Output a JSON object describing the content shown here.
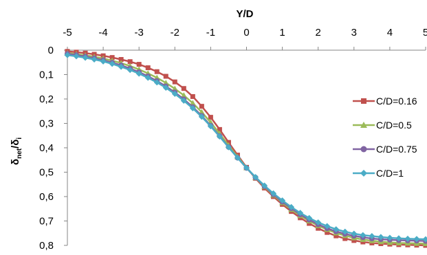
{
  "chart_data": {
    "type": "line",
    "title": "",
    "xlabel": "Y/D",
    "ylabel": {
      "main": "δ",
      "sub1": "net",
      "slash": "/δ",
      "sub2": "i"
    },
    "x_axis_position": "top",
    "y_axis_reversed": true,
    "xlim": [
      -5,
      5
    ],
    "ylim": [
      0,
      0.8
    ],
    "x_ticks": [
      -5,
      -4,
      -3,
      -2,
      -1,
      0,
      1,
      2,
      3,
      4,
      5
    ],
    "x_tick_labels": [
      "-5",
      "-4",
      "-3",
      "-2",
      "-1",
      "0",
      "1",
      "2",
      "3",
      "4",
      "5"
    ],
    "y_ticks": [
      0,
      0.1,
      0.2,
      0.3,
      0.4,
      0.5,
      0.6,
      0.7,
      0.8
    ],
    "y_tick_labels": [
      "0",
      "0,1",
      "0,2",
      "0,3",
      "0,4",
      "0,5",
      "0,6",
      "0,7",
      "0,8"
    ],
    "grid": false,
    "legend_position": "right",
    "x": [
      -5,
      -4.75,
      -4.5,
      -4.25,
      -4,
      -3.75,
      -3.5,
      -3.25,
      -3,
      -2.75,
      -2.5,
      -2.25,
      -2,
      -1.75,
      -1.5,
      -1.25,
      -1,
      -0.75,
      -0.5,
      -0.25,
      0,
      0.25,
      0.5,
      0.75,
      1,
      1.25,
      1.5,
      1.75,
      2,
      2.25,
      2.5,
      2.75,
      3,
      3.25,
      3.5,
      3.75,
      4,
      4.25,
      4.5,
      4.75,
      5
    ],
    "series": [
      {
        "name": "C/D=0.16",
        "color": "#C0504D",
        "marker": "square",
        "values": [
          0.005,
          0.008,
          0.012,
          0.017,
          0.023,
          0.03,
          0.038,
          0.047,
          0.058,
          0.072,
          0.088,
          0.107,
          0.13,
          0.157,
          0.19,
          0.23,
          0.275,
          0.325,
          0.378,
          0.43,
          0.48,
          0.525,
          0.565,
          0.6,
          0.632,
          0.661,
          0.687,
          0.71,
          0.73,
          0.747,
          0.761,
          0.772,
          0.78,
          0.786,
          0.79,
          0.793,
          0.795,
          0.797,
          0.798,
          0.799,
          0.8
        ]
      },
      {
        "name": "C/D=0.5",
        "color": "#9BBB59",
        "marker": "triangle",
        "values": [
          0.012,
          0.016,
          0.021,
          0.027,
          0.034,
          0.043,
          0.053,
          0.065,
          0.079,
          0.095,
          0.113,
          0.134,
          0.158,
          0.185,
          0.217,
          0.254,
          0.296,
          0.342,
          0.39,
          0.437,
          0.482,
          0.523,
          0.56,
          0.594,
          0.625,
          0.653,
          0.678,
          0.7,
          0.719,
          0.735,
          0.749,
          0.76,
          0.769,
          0.776,
          0.781,
          0.785,
          0.788,
          0.79,
          0.791,
          0.792,
          0.793
        ]
      },
      {
        "name": "C/D=0.75",
        "color": "#8064A2",
        "marker": "circle",
        "values": [
          0.015,
          0.02,
          0.026,
          0.033,
          0.041,
          0.051,
          0.062,
          0.075,
          0.09,
          0.107,
          0.126,
          0.148,
          0.173,
          0.201,
          0.233,
          0.269,
          0.309,
          0.352,
          0.397,
          0.441,
          0.483,
          0.522,
          0.558,
          0.591,
          0.621,
          0.648,
          0.673,
          0.695,
          0.714,
          0.73,
          0.743,
          0.753,
          0.761,
          0.767,
          0.772,
          0.775,
          0.777,
          0.779,
          0.78,
          0.781,
          0.782
        ]
      },
      {
        "name": "C/D=1",
        "color": "#4BACC6",
        "marker": "diamond",
        "values": [
          0.02,
          0.025,
          0.031,
          0.038,
          0.046,
          0.056,
          0.068,
          0.081,
          0.096,
          0.113,
          0.132,
          0.154,
          0.179,
          0.207,
          0.238,
          0.273,
          0.312,
          0.354,
          0.398,
          0.441,
          0.482,
          0.52,
          0.555,
          0.587,
          0.616,
          0.643,
          0.667,
          0.688,
          0.706,
          0.721,
          0.734,
          0.744,
          0.752,
          0.758,
          0.762,
          0.766,
          0.769,
          0.771,
          0.773,
          0.774,
          0.775
        ]
      }
    ]
  }
}
